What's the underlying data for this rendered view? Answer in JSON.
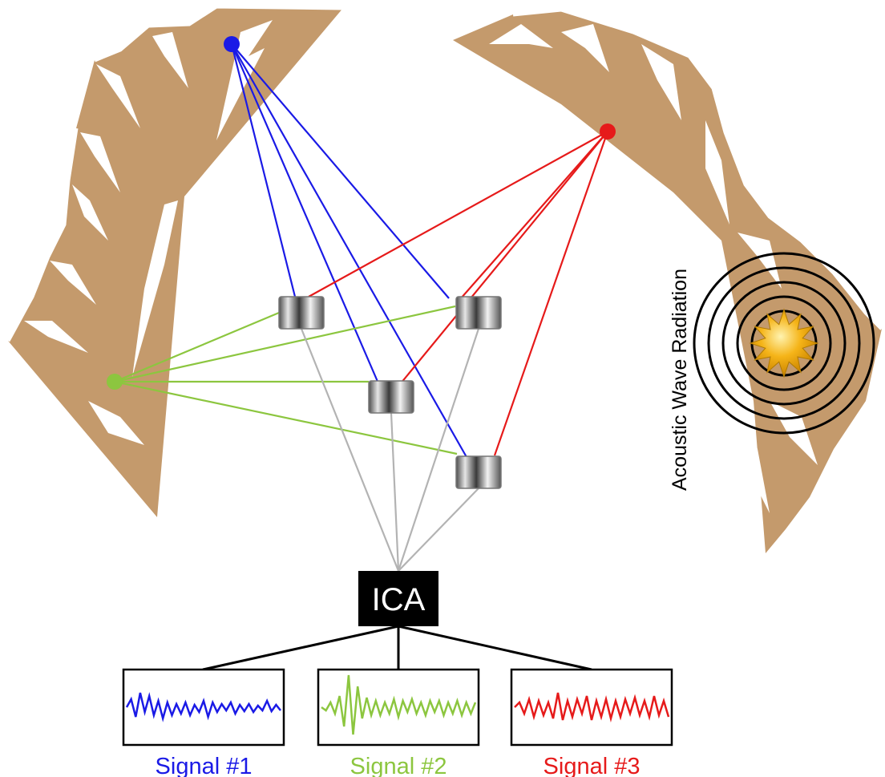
{
  "processor": {
    "label": "ICA"
  },
  "source_annotation": {
    "label": "Acoustic Wave Radiation"
  },
  "outputs": [
    {
      "label": "Signal #1",
      "color": "#1a1ae6"
    },
    {
      "label": "Signal #2",
      "color": "#8cc63f"
    },
    {
      "label": "Signal #3",
      "color": "#e61a1a"
    }
  ],
  "colors": {
    "mountain": "#c49a6c",
    "snow": "#ffffff",
    "source_blue": "#1a1ae6",
    "source_green": "#8cc63f",
    "source_red": "#e61a1a",
    "sensor_link": "#b3b3b3",
    "burst": "#f5b418",
    "ica_box": "#000000"
  }
}
